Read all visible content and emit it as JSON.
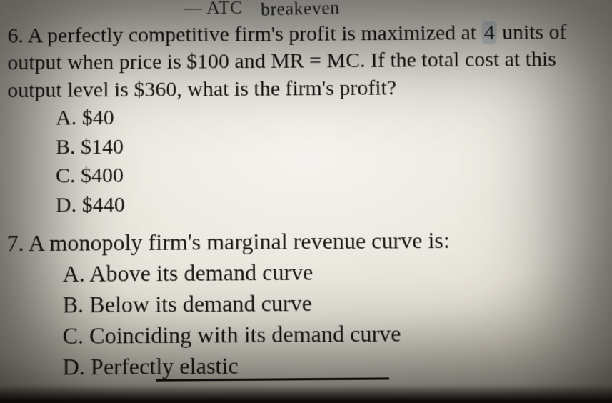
{
  "topcut": {
    "printed": "ATC",
    "prefix_glyphs": "— ",
    "hand": "breakeven"
  },
  "q6": {
    "number": "6.",
    "stem_pre": "A perfectly competitive firm's profit is maximized at ",
    "stem_hl": "4",
    "stem_post": " units of output when price is $100 and MR = MC. If the total cost at this output level is $360, what is the firm's profit?",
    "opts": {
      "A": "A. $40",
      "B": "B. $140",
      "C": "C. $400",
      "D": "D. $440"
    }
  },
  "q7": {
    "number": "7.",
    "stem": "A monopoly firm's marginal revenue curve is:",
    "opts": {
      "A": "A. Above its demand curve",
      "B": "B. Below its demand curve",
      "C": "C. Coinciding with its demand curve",
      "D_pre": "D. Perfect",
      "D_ul": "ly elastic"
    }
  }
}
